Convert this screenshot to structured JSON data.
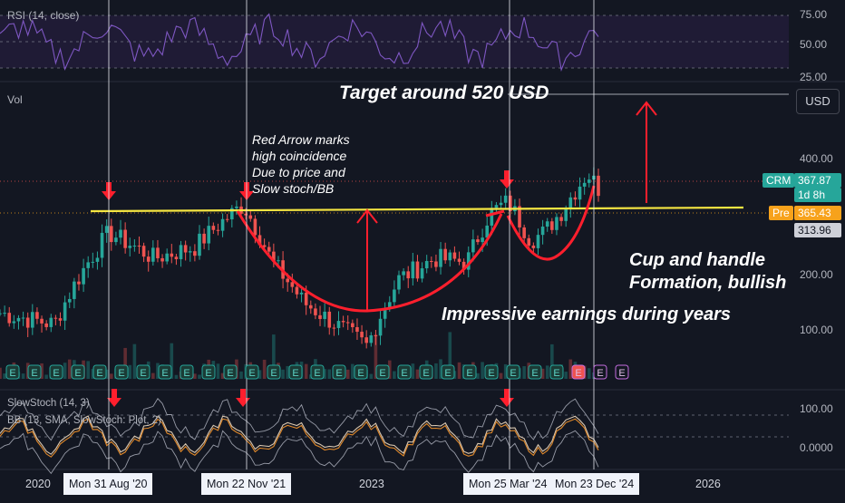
{
  "colors": {
    "background": "#131722",
    "up": "#26a69a",
    "down": "#ef5350",
    "rsi_line": "#7e57c2",
    "rsi_band": "#2a1f45",
    "resistance": "#f5e642",
    "annotation_red": "#ff1f2d",
    "bb_band": "#3a3f4f",
    "stoch_k": "#d9c7b0",
    "stoch_d": "#e0892b",
    "crm_tag": "#26a69a",
    "pre_tag": "#f7a21b",
    "last_tag": "#ced0d8"
  },
  "rsi_pane": {
    "label": "RSI (14, close)",
    "ticks": [
      "75.00",
      "50.00",
      "25.00"
    ]
  },
  "vol_pane": {
    "label": "Vol"
  },
  "price_axis": {
    "ticks": [
      "400.00",
      "200.00",
      "100.00"
    ],
    "usd_button": "USD",
    "crm_label": "CRM",
    "crm_price": "367.87",
    "crm_time": "1d 8h",
    "pre_label": "Pre",
    "pre_price": "365.43",
    "last_price": "313.96"
  },
  "stoch_pane": {
    "label1": "SlowStoch (14, 3)",
    "label2": "BB (13, SMA, SlowStoch: Plot, 2)",
    "ticks": [
      "100.00",
      "0.0000"
    ]
  },
  "earnings_marker": "E",
  "annotations": {
    "target": "Target around 520 USD",
    "red_arrow_note": [
      "Red Arrow marks",
      "high coincidence",
      "Due to price and",
      "Slow stoch/BB"
    ],
    "cup_handle": [
      "Cup and handle",
      "Formation, bullish"
    ],
    "earnings": "Impressive earnings during years"
  },
  "time_axis": {
    "years": [
      "2020",
      "2023",
      "2026"
    ],
    "crosshair_dates": [
      "Mon 31 Aug '20",
      "Mon 22 Nov '21",
      "Mon 25 Mar '24",
      "Mon 23 Dec '24"
    ]
  },
  "chart_data": {
    "type": "candlestick",
    "symbol": "CRM",
    "scale": "log",
    "x": [
      "2019-11",
      "2020-03",
      "2020-08",
      "2021-01",
      "2021-05",
      "2021-11",
      "2022-03",
      "2022-06",
      "2022-09",
      "2022-12",
      "2023-03",
      "2023-06",
      "2023-09",
      "2024-01",
      "2024-03",
      "2024-05",
      "2024-08",
      "2024-10",
      "2024-12",
      "2025-01"
    ],
    "close": [
      160,
      150,
      255,
      220,
      235,
      300,
      215,
      170,
      150,
      132,
      195,
      220,
      215,
      285,
      305,
      245,
      255,
      290,
      360,
      330
    ],
    "resistance_level": 310,
    "target": 520,
    "rsi_range": [
      25,
      75
    ]
  }
}
